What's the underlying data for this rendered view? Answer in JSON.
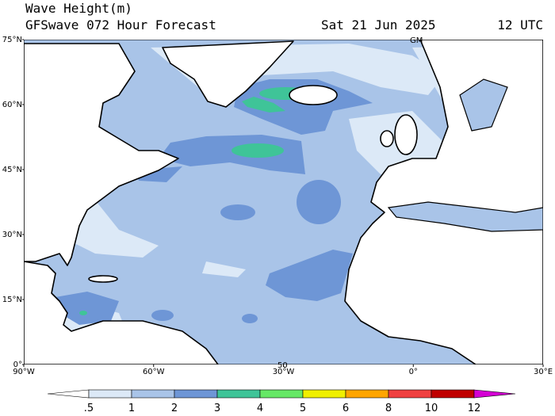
{
  "header": {
    "title": "Wave Height(m)",
    "subtitle": "GFSwave 072 Hour Forecast",
    "date": "Sat 21 Jun 2025",
    "time": "12 UTC"
  },
  "map": {
    "lat_labels": [
      "75°N",
      "60°N",
      "45°N",
      "30°N",
      "15°N",
      "0°"
    ],
    "lon_labels": [
      "90°W",
      "60°W",
      "30°W",
      "0°",
      "30°E"
    ],
    "annotations": [
      "GM",
      "50"
    ]
  },
  "colorbar": {
    "labels": [
      ".5",
      "1",
      "2",
      "3",
      "4",
      "5",
      "6",
      "8",
      "10",
      "12"
    ],
    "colors": [
      "#ffffff",
      "#dce9f7",
      "#a9c4e8",
      "#6e96d6",
      "#3fc498",
      "#66e866",
      "#f0f000",
      "#ffa500",
      "#f04040",
      "#c00000",
      "#d400d4"
    ]
  }
}
